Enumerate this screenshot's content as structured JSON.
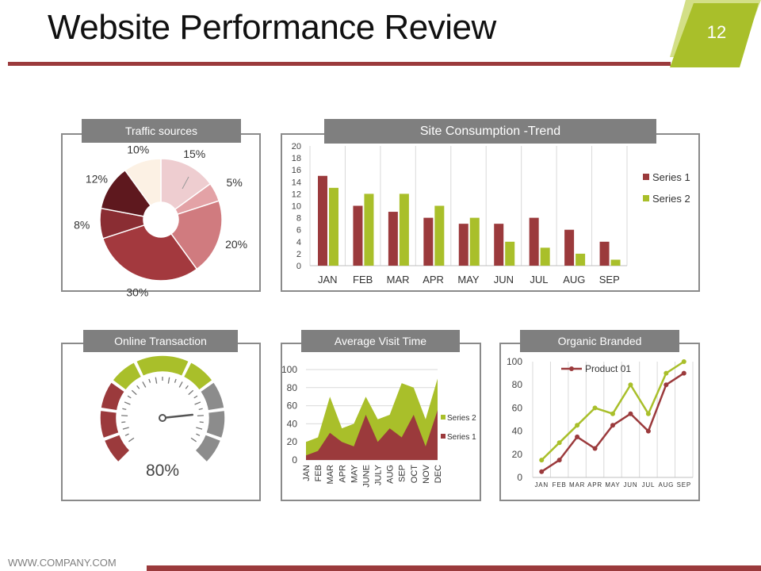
{
  "slide": {
    "title": "Website Performance Review",
    "page_number": "12",
    "footer": "WWW.COMPANY.COM",
    "colors": {
      "accent_red": "#9b3a3c",
      "accent_green": "#a9bf2a",
      "header_gray": "#7f7f7f"
    }
  },
  "chart_data": [
    {
      "id": "traffic",
      "type": "pie",
      "title": "Traffic sources",
      "labels": [
        "15%",
        "5%",
        "20%",
        "30%",
        "8%",
        "12%",
        "10%"
      ],
      "values": [
        15,
        5,
        20,
        30,
        8,
        12,
        10
      ],
      "colors": [
        "#eecdd0",
        "#e3a2a6",
        "#d07b7f",
        "#a3393e",
        "#8a2d33",
        "#5e181e",
        "#fcf1e4"
      ]
    },
    {
      "id": "consumption",
      "type": "bar",
      "title": "Site Consumption -Trend",
      "categories": [
        "JAN",
        "FEB",
        "MAR",
        "APR",
        "MAY",
        "JUN",
        "JUL",
        "AUG",
        "SEP"
      ],
      "series": [
        {
          "name": "Series 1",
          "values": [
            15,
            10,
            9,
            8,
            7,
            7,
            8,
            6,
            4
          ],
          "color": "#9b3a3c"
        },
        {
          "name": "Series 2",
          "values": [
            13,
            12,
            12,
            10,
            8,
            4,
            3,
            2,
            1
          ],
          "color": "#a9bf2a"
        }
      ],
      "yticks": [
        "0",
        "2",
        "4",
        "6",
        "8",
        "10",
        "12",
        "14",
        "16",
        "18",
        "20"
      ],
      "ylim": [
        0,
        20
      ],
      "legend": "right"
    },
    {
      "id": "transaction",
      "type": "gauge",
      "title": "Online Transaction",
      "value_label": "80%",
      "value": 80
    },
    {
      "id": "visit",
      "type": "area",
      "title": "Average Visit Time",
      "categories": [
        "JAN",
        "FEB",
        "MAR",
        "APR",
        "MAY",
        "JUNE",
        "JULY",
        "AUG",
        "SEP",
        "OCT",
        "NOV",
        "DEC"
      ],
      "series": [
        {
          "name": "Series 1",
          "values": [
            5,
            10,
            30,
            20,
            15,
            50,
            20,
            35,
            25,
            50,
            15,
            55
          ],
          "color": "#9b3a3c"
        },
        {
          "name": "Series 2",
          "values": [
            15,
            15,
            40,
            15,
            25,
            20,
            25,
            15,
            60,
            30,
            30,
            35
          ],
          "color": "#a9bf2a"
        }
      ],
      "yticks": [
        "0",
        "20",
        "40",
        "60",
        "80",
        "100"
      ],
      "ylim": [
        0,
        100
      ],
      "stacked": true,
      "legend": "right"
    },
    {
      "id": "organic",
      "type": "line",
      "title": "Organic Branded",
      "categories": [
        "JAN",
        "FEB",
        "MAR",
        "APR",
        "MAY",
        "JUN",
        "JUL",
        "AUG",
        "SEP"
      ],
      "series": [
        {
          "name": "Product 01",
          "values": [
            5,
            15,
            35,
            25,
            45,
            55,
            40,
            80,
            90
          ],
          "color": "#9b3a3c"
        },
        {
          "name": "",
          "values": [
            15,
            30,
            45,
            60,
            55,
            80,
            55,
            90,
            100
          ],
          "color": "#a9bf2a"
        }
      ],
      "yticks": [
        "0",
        "20",
        "40",
        "60",
        "80",
        "100"
      ],
      "ylim": [
        0,
        100
      ],
      "legend": "top"
    }
  ]
}
